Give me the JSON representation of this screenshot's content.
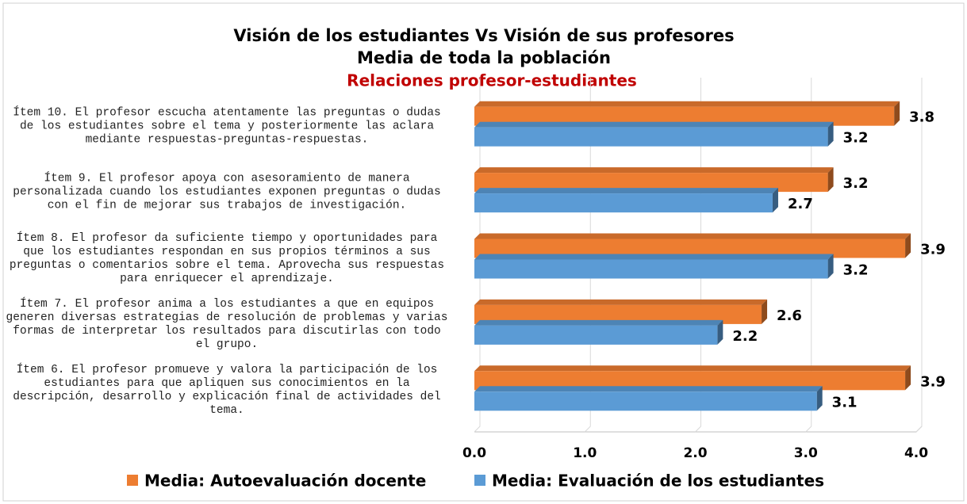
{
  "chart_data": {
    "type": "bar",
    "orientation": "horizontal",
    "title": [
      "Visión de los estudiantes Vs Visión de sus profesores",
      "Media de toda la población"
    ],
    "subtitle": "Relaciones profesor-estudiantes",
    "categories": [
      "Ítem 10. El profesor escucha atentamente las preguntas o dudas de los estudiantes sobre el tema y posteriormente las aclara mediante respuestas-preguntas-respuestas.",
      "Ítem 9. El profesor apoya con asesoramiento de manera personalizada cuando los estudiantes exponen preguntas o dudas con el fin de mejorar sus trabajos de investigación.",
      "Ítem 8. El profesor da suficiente tiempo y oportunidades para que los estudiantes respondan en sus propios términos a sus preguntas o comentarios sobre el tema. Aprovecha sus respuestas para enriquecer el aprendizaje.",
      "Ítem 7. El profesor anima a los estudiantes a que en equipos generen diversas estrategias de resolución de problemas y varias formas de interpretar los resultados para discutirlas con todo el grupo.",
      "Ítem 6. El profesor promueve y valora la participación de los estudiantes para que apliquen sus conocimientos en la descripción, desarrollo y explicación final de actividades del tema."
    ],
    "series": [
      {
        "name": "Media: Autoevaluación docente",
        "color": "#ed7d31",
        "values": [
          3.8,
          3.2,
          3.9,
          2.6,
          3.9
        ]
      },
      {
        "name": "Media: Evaluación de los estudiantes",
        "color": "#5b9bd5",
        "values": [
          3.2,
          2.7,
          3.2,
          2.2,
          3.1
        ]
      }
    ],
    "xlim": [
      0,
      4
    ],
    "xticks": [
      {
        "value": 0,
        "label": "0.0"
      },
      {
        "value": 1,
        "label": "1.0"
      },
      {
        "value": 2,
        "label": "2.0"
      },
      {
        "value": 3,
        "label": "3.0"
      },
      {
        "value": 4,
        "label": "4.0"
      }
    ],
    "grid": true,
    "legend": "bottom"
  }
}
